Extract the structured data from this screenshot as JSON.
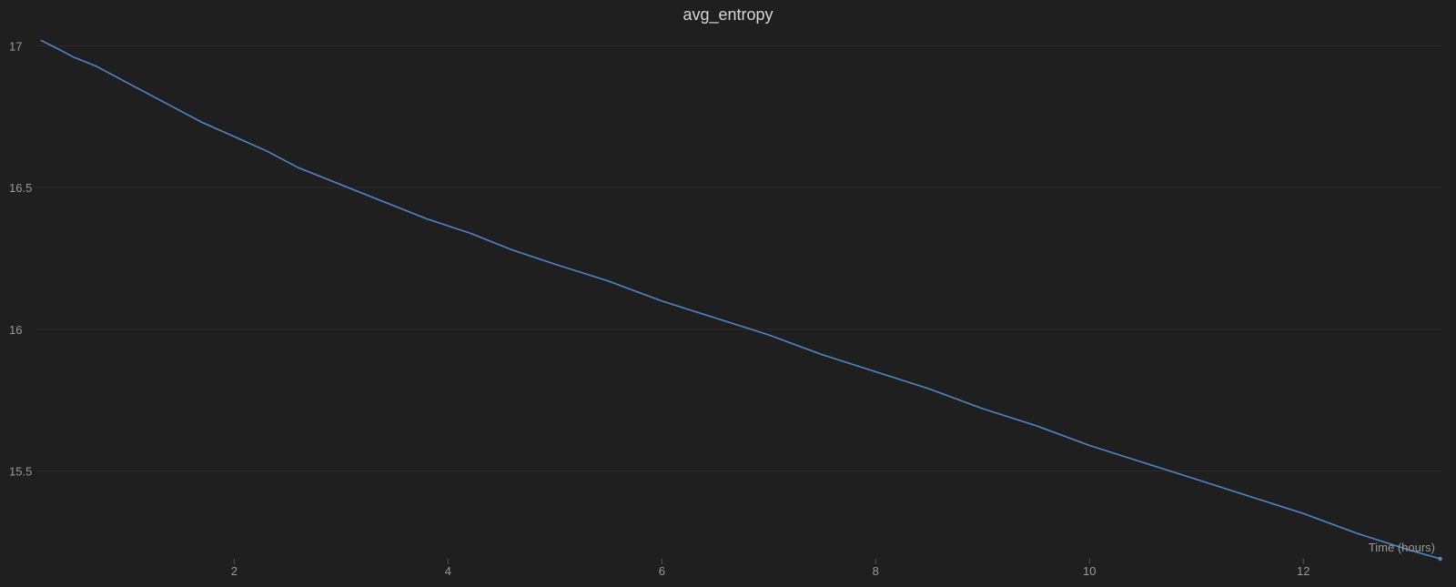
{
  "chart_data": {
    "type": "line",
    "title": "avg_entropy",
    "xlabel": "Time (hours)",
    "ylabel": "",
    "xlim": [
      0.15,
      13.3
    ],
    "ylim": [
      15.19,
      17.04
    ],
    "x_ticks": [
      2,
      4,
      6,
      8,
      10,
      12
    ],
    "y_ticks": [
      15.5,
      16,
      16.5,
      17
    ],
    "x_tick_labels": [
      "2",
      "4",
      "6",
      "8",
      "10",
      "12"
    ],
    "y_tick_labels": [
      "15.5",
      "16",
      "16.5",
      "17"
    ],
    "grid": true,
    "series": [
      {
        "color": "#4e88c7",
        "x": [
          0.19,
          0.35,
          0.5,
          0.7,
          0.9,
          1.1,
          1.3,
          1.5,
          1.7,
          2.0,
          2.3,
          2.6,
          3.0,
          3.4,
          3.8,
          4.2,
          4.6,
          5.0,
          5.5,
          6.0,
          6.5,
          7.0,
          7.5,
          8.0,
          8.5,
          9.0,
          9.5,
          10.0,
          10.5,
          11.0,
          11.5,
          12.0,
          12.5,
          13.0,
          13.28
        ],
        "y": [
          17.02,
          16.99,
          16.96,
          16.93,
          16.89,
          16.85,
          16.81,
          16.77,
          16.73,
          16.68,
          16.63,
          16.57,
          16.51,
          16.45,
          16.39,
          16.34,
          16.28,
          16.23,
          16.17,
          16.1,
          16.04,
          15.98,
          15.91,
          15.85,
          15.79,
          15.72,
          15.66,
          15.59,
          15.53,
          15.47,
          15.41,
          15.35,
          15.28,
          15.22,
          15.19
        ]
      }
    ]
  }
}
